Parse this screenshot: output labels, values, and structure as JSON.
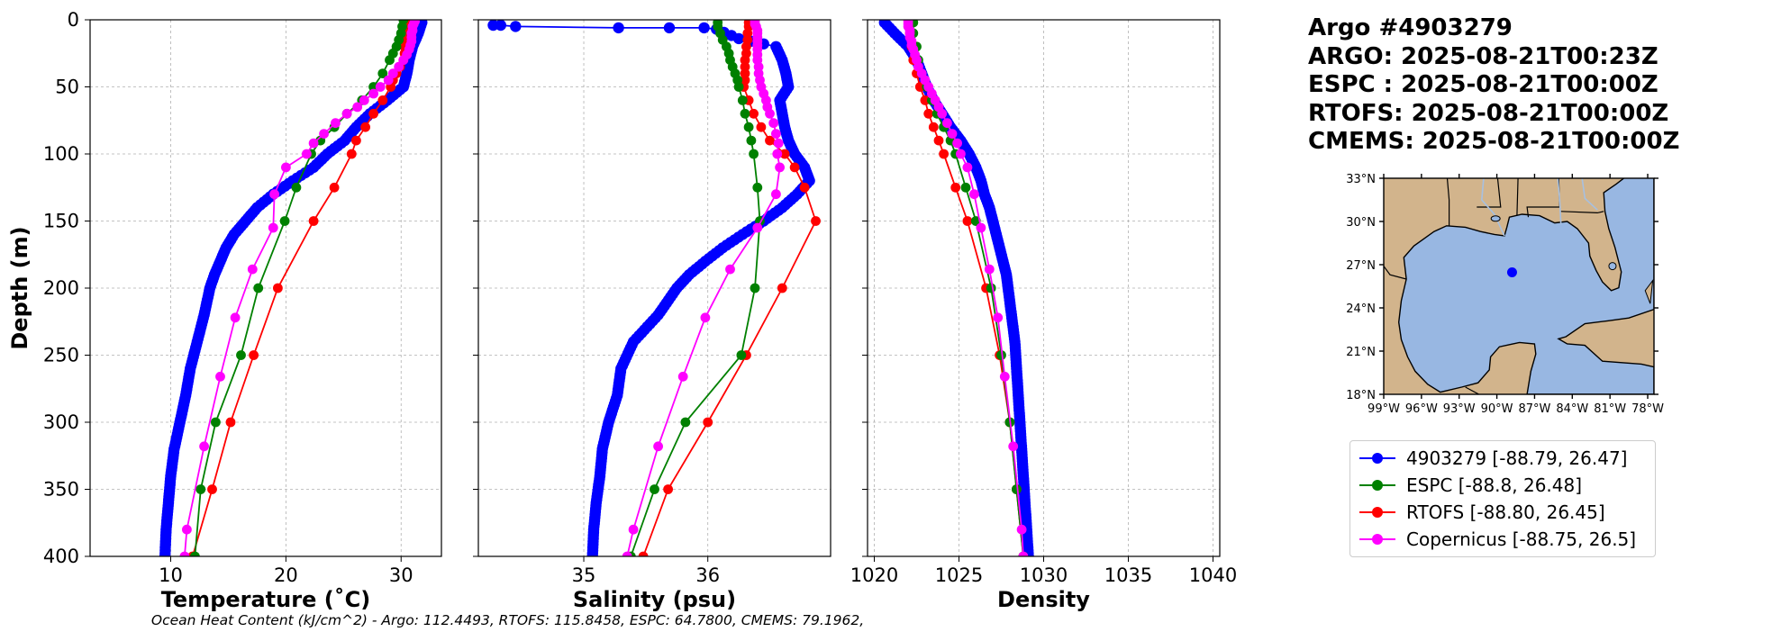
{
  "header": {
    "title_lines": [
      "Argo #4903279",
      "ARGO: 2025-08-21T00:23Z",
      "ESPC : 2025-08-21T00:00Z",
      "RTOFS: 2025-08-21T00:00Z",
      "CMEMS: 2025-08-21T00:00Z"
    ]
  },
  "footer": {
    "text": "Ocean Heat Content (kJ/cm^2) - Argo: 112.4493,  RTOFS: 115.8458,  ESPC: 64.7800,  CMEMS: 79.1962,"
  },
  "colors": {
    "argo": "#0000ff",
    "espc": "#008000",
    "rtofs": "#ff0000",
    "copernicus": "#ff00ff",
    "ocean": "#98b7e2",
    "land": "#d2b48c"
  },
  "legend": {
    "entries": [
      {
        "key": "argo",
        "label": "4903279 [-88.79, 26.47]"
      },
      {
        "key": "espc",
        "label": "ESPC [-88.8, 26.48]"
      },
      {
        "key": "rtofs",
        "label": "RTOFS [-88.80, 26.45]"
      },
      {
        "key": "copernicus",
        "label": "Copernicus [-88.75, 26.5]"
      }
    ]
  },
  "chart_data": [
    {
      "type": "line",
      "title": "",
      "xlabel": "Temperature (˚C)",
      "ylabel": "Depth (m)",
      "xlim": [
        3,
        33.5
      ],
      "ylim": [
        400,
        0
      ],
      "xticks": [
        10,
        20,
        30
      ],
      "yticks": [
        0,
        50,
        100,
        150,
        200,
        250,
        300,
        350,
        400
      ],
      "grid": true,
      "series": [
        {
          "name": "4903279",
          "key": "argo",
          "dense": true,
          "depth": [
            2,
            10,
            20,
            30,
            40,
            50,
            60,
            70,
            80,
            90,
            100,
            110,
            120,
            130,
            140,
            150,
            160,
            170,
            180,
            190,
            200,
            220,
            240,
            260,
            280,
            300,
            320,
            340,
            360,
            380,
            400
          ],
          "values": [
            31.8,
            31.5,
            31.0,
            30.7,
            30.5,
            30.2,
            28.8,
            27.3,
            26.1,
            25.1,
            23.6,
            22.4,
            20.6,
            18.9,
            17.5,
            16.5,
            15.5,
            14.8,
            14.3,
            13.8,
            13.4,
            12.9,
            12.3,
            11.7,
            11.3,
            10.8,
            10.3,
            10.0,
            9.8,
            9.6,
            9.5
          ]
        },
        {
          "name": "ESPC",
          "key": "espc",
          "dense": false,
          "depth": [
            0,
            5,
            10,
            15,
            20,
            25,
            30,
            40,
            50,
            60,
            70,
            80,
            90,
            100,
            125,
            150,
            200,
            250,
            300,
            350,
            400
          ],
          "values": [
            30.2,
            30.1,
            30.0,
            29.8,
            29.6,
            29.3,
            29.0,
            28.4,
            27.6,
            26.6,
            25.3,
            24.2,
            23.0,
            22.2,
            20.9,
            19.9,
            17.6,
            16.1,
            13.9,
            12.6,
            12.1
          ]
        },
        {
          "name": "RTOFS",
          "key": "rtofs",
          "dense": false,
          "depth": [
            0,
            5,
            10,
            15,
            20,
            25,
            30,
            35,
            40,
            45,
            50,
            60,
            70,
            80,
            90,
            100,
            125,
            150,
            200,
            250,
            300,
            350,
            400
          ],
          "values": [
            30.5,
            30.5,
            30.4,
            30.4,
            30.3,
            30.3,
            30.2,
            29.9,
            29.6,
            29.3,
            29.1,
            28.4,
            27.6,
            26.9,
            26.1,
            25.7,
            24.2,
            22.4,
            19.3,
            17.2,
            15.2,
            13.6,
            11.9
          ]
        },
        {
          "name": "Copernicus",
          "key": "copernicus",
          "dense": false,
          "depth": [
            1,
            3,
            5,
            8,
            10,
            13,
            16,
            19,
            22,
            26,
            30,
            35,
            40,
            45,
            50,
            55,
            60,
            65,
            70,
            77,
            85,
            92,
            100,
            110,
            130,
            155,
            186,
            222,
            266,
            318,
            380,
            400
          ],
          "values": [
            31.2,
            31.1,
            31.0,
            31.0,
            30.9,
            30.9,
            30.9,
            30.8,
            30.7,
            30.5,
            30.2,
            29.8,
            29.3,
            28.9,
            28.2,
            27.6,
            26.8,
            26.2,
            25.3,
            24.3,
            23.3,
            22.4,
            21.8,
            20.0,
            19.0,
            18.9,
            17.1,
            15.6,
            14.3,
            12.9,
            11.4,
            11.2
          ]
        }
      ]
    },
    {
      "type": "line",
      "title": "",
      "xlabel": "Salinity (psu)",
      "ylabel": "",
      "xlim": [
        34.15,
        36.99
      ],
      "ylim": [
        400,
        0
      ],
      "xticks": [
        35,
        36
      ],
      "yticks": [
        0,
        50,
        100,
        150,
        200,
        250,
        300,
        350,
        400
      ],
      "grid": true,
      "series": [
        {
          "name": "4903279",
          "key": "argo",
          "dense": true,
          "depth": [
            4,
            4,
            5,
            6,
            6,
            6,
            7,
            14,
            20,
            30,
            40,
            50,
            60,
            70,
            80,
            90,
            100,
            110,
            120,
            130,
            140,
            150,
            160,
            170,
            180,
            190,
            200,
            220,
            240,
            260,
            280,
            300,
            320,
            340,
            360,
            380,
            400
          ],
          "values": [
            34.27,
            34.33,
            34.45,
            35.28,
            35.69,
            35.97,
            36.07,
            36.25,
            36.55,
            36.6,
            36.63,
            36.65,
            36.58,
            36.6,
            36.62,
            36.65,
            36.7,
            36.78,
            36.82,
            36.72,
            36.6,
            36.45,
            36.28,
            36.12,
            35.98,
            35.85,
            35.75,
            35.6,
            35.4,
            35.3,
            35.27,
            35.2,
            35.15,
            35.13,
            35.1,
            35.08,
            35.07
          ]
        },
        {
          "name": "ESPC",
          "key": "espc",
          "dense": false,
          "depth": [
            2,
            5,
            10,
            15,
            20,
            25,
            30,
            35,
            40,
            45,
            50,
            60,
            70,
            80,
            90,
            100,
            125,
            150,
            200,
            250,
            300,
            350,
            400
          ],
          "values": [
            36.08,
            36.08,
            36.1,
            36.12,
            36.15,
            36.17,
            36.18,
            36.2,
            36.22,
            36.24,
            36.25,
            36.28,
            36.3,
            36.33,
            36.35,
            36.37,
            36.4,
            36.42,
            36.38,
            36.27,
            35.82,
            35.57,
            35.38
          ]
        },
        {
          "name": "RTOFS",
          "key": "rtofs",
          "dense": false,
          "depth": [
            2,
            5,
            10,
            15,
            20,
            25,
            30,
            35,
            40,
            45,
            50,
            60,
            70,
            80,
            90,
            100,
            110,
            125,
            150,
            200,
            250,
            300,
            350,
            400
          ],
          "values": [
            36.33,
            36.33,
            36.32,
            36.32,
            36.31,
            36.31,
            36.3,
            36.3,
            36.3,
            36.3,
            36.29,
            36.33,
            36.37,
            36.43,
            36.5,
            36.62,
            36.7,
            36.78,
            36.87,
            36.6,
            36.31,
            36.0,
            35.68,
            35.48
          ]
        },
        {
          "name": "Copernicus",
          "key": "copernicus",
          "dense": false,
          "depth": [
            1,
            3,
            5,
            8,
            10,
            13,
            16,
            19,
            22,
            26,
            30,
            35,
            40,
            45,
            50,
            55,
            60,
            65,
            70,
            77,
            85,
            92,
            100,
            110,
            130,
            155,
            186,
            222,
            266,
            318,
            380,
            400
          ],
          "values": [
            36.38,
            36.38,
            36.39,
            36.4,
            36.4,
            36.4,
            36.4,
            36.4,
            36.4,
            36.4,
            36.4,
            36.41,
            36.41,
            36.42,
            36.43,
            36.45,
            36.47,
            36.48,
            36.5,
            36.53,
            36.55,
            36.57,
            36.56,
            36.58,
            36.55,
            36.4,
            36.18,
            35.98,
            35.8,
            35.6,
            35.4,
            35.35
          ]
        }
      ]
    },
    {
      "type": "line",
      "title": "",
      "xlabel": "Density",
      "ylabel": "",
      "xlim": [
        1019.6,
        1040.4
      ],
      "ylim": [
        400,
        0
      ],
      "xticks": [
        1020,
        1025,
        1030,
        1035,
        1040
      ],
      "yticks": [
        0,
        50,
        100,
        150,
        200,
        250,
        300,
        350,
        400
      ],
      "grid": true,
      "series": [
        {
          "name": "4903279",
          "key": "argo",
          "dense": true,
          "depth": [
            2,
            10,
            20,
            30,
            40,
            50,
            60,
            70,
            80,
            90,
            100,
            110,
            120,
            130,
            140,
            150,
            160,
            170,
            180,
            190,
            200,
            220,
            240,
            260,
            280,
            300,
            320,
            340,
            360,
            380,
            400
          ],
          "values": [
            1020.6,
            1021.2,
            1022.0,
            1022.5,
            1022.8,
            1023.1,
            1023.5,
            1024.0,
            1024.5,
            1025.1,
            1025.6,
            1026.0,
            1026.3,
            1026.5,
            1026.8,
            1027.0,
            1027.2,
            1027.4,
            1027.6,
            1027.8,
            1027.9,
            1028.1,
            1028.3,
            1028.4,
            1028.5,
            1028.6,
            1028.7,
            1028.8,
            1028.9,
            1029.0,
            1029.1
          ]
        },
        {
          "name": "ESPC",
          "key": "espc",
          "dense": false,
          "depth": [
            2,
            10,
            20,
            30,
            40,
            50,
            60,
            70,
            80,
            90,
            100,
            125,
            150,
            200,
            250,
            300,
            350,
            400
          ],
          "values": [
            1022.3,
            1022.3,
            1022.5,
            1022.6,
            1022.8,
            1023.1,
            1023.4,
            1023.7,
            1024.1,
            1024.5,
            1024.8,
            1025.4,
            1026.0,
            1026.9,
            1027.5,
            1028.0,
            1028.4,
            1028.8
          ]
        },
        {
          "name": "RTOFS",
          "key": "rtofs",
          "dense": false,
          "depth": [
            2,
            10,
            20,
            30,
            40,
            50,
            60,
            70,
            80,
            90,
            100,
            125,
            150,
            200,
            250,
            300,
            350,
            400
          ],
          "values": [
            1022.1,
            1022.1,
            1022.2,
            1022.3,
            1022.5,
            1022.7,
            1023.0,
            1023.2,
            1023.5,
            1023.8,
            1024.1,
            1024.8,
            1025.5,
            1026.6,
            1027.4,
            1028.0,
            1028.4,
            1028.8
          ]
        },
        {
          "name": "Copernicus",
          "key": "copernicus",
          "dense": false,
          "depth": [
            1,
            3,
            5,
            8,
            10,
            13,
            16,
            19,
            22,
            26,
            30,
            35,
            40,
            45,
            50,
            55,
            60,
            65,
            70,
            77,
            85,
            92,
            100,
            110,
            130,
            155,
            186,
            222,
            266,
            318,
            380,
            400
          ],
          "values": [
            1022.0,
            1022.0,
            1022.0,
            1022.1,
            1022.1,
            1022.1,
            1022.2,
            1022.2,
            1022.3,
            1022.4,
            1022.5,
            1022.6,
            1022.8,
            1023.0,
            1023.2,
            1023.4,
            1023.6,
            1023.8,
            1024.0,
            1024.3,
            1024.6,
            1024.9,
            1025.1,
            1025.5,
            1025.9,
            1026.3,
            1026.8,
            1027.3,
            1027.7,
            1028.2,
            1028.7,
            1028.8
          ]
        }
      ]
    },
    {
      "type": "map",
      "title": "",
      "xlim": [
        -99,
        -77.5
      ],
      "ylim": [
        18,
        33
      ],
      "xticks": [
        -99,
        -96,
        -93,
        -90,
        -87,
        -84,
        -81,
        -78
      ],
      "xtick_labels": [
        "99°W",
        "96°W",
        "93°W",
        "90°W",
        "87°W",
        "84°W",
        "81°W",
        "78°W"
      ],
      "yticks": [
        18,
        21,
        24,
        27,
        30,
        33
      ],
      "ytick_labels": [
        "18°N",
        "21°N",
        "24°N",
        "27°N",
        "30°N",
        "33°N"
      ],
      "point": {
        "lon": -88.79,
        "lat": 26.47
      }
    }
  ]
}
